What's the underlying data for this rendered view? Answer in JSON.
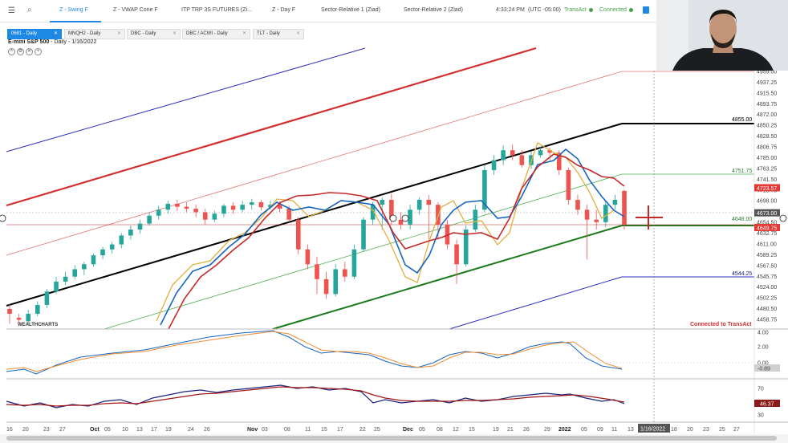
{
  "tabs": [
    {
      "label": "Z - Swing F",
      "active": true
    },
    {
      "label": "Z - VWAP Cone F",
      "active": false
    },
    {
      "label": "ITP TRP 3S FUTURES (Zi...",
      "active": false
    },
    {
      "label": "Z - Day F",
      "active": false
    },
    {
      "label": "Sector-Relative 1 (Ziad)",
      "active": false
    },
    {
      "label": "Sector-Relative 2 (Ziad)",
      "active": false
    }
  ],
  "status": {
    "time": "4:33:24 PM",
    "timezone": "(UTC -05:00)",
    "broker": "TransAct",
    "connection": "Connected"
  },
  "subtabs": [
    {
      "label": "0681 - Daily",
      "active": true
    },
    {
      "label": "MNQH2 - Daily",
      "active": false
    },
    {
      "label": "DBC - Daily",
      "active": false
    },
    {
      "label": "DBC / ACWI - Daily",
      "active": false
    },
    {
      "label": "TLT - Daily",
      "active": false
    }
  ],
  "chart": {
    "title": "E-mini S&P 500",
    "subtitle": " - Daily - 1/16/2022",
    "connected_notice": "Connected to TransAct",
    "watermark": "WEALTHCHARTS",
    "date_readout": "1/16/2022",
    "colors": {
      "up": "#26a69a",
      "down": "#ef5350",
      "accent": "#1e88e5"
    }
  },
  "chart_data": {
    "type": "candlestick",
    "price_axis": [
      "4959.00",
      "4937.25",
      "4915.50",
      "4893.75",
      "4872.00",
      "4850.25",
      "4828.50",
      "4806.75",
      "4785.00",
      "4763.25",
      "4741.50",
      "4719.75",
      "4698.00",
      "4676.25",
      "4654.50",
      "4632.75",
      "4611.00",
      "4589.25",
      "4567.50",
      "4545.75",
      "4524.00",
      "4502.25",
      "4480.50",
      "4458.75"
    ],
    "price_labels": [
      {
        "value": 4855.0,
        "text": "4855.00",
        "color": "#000000"
      },
      {
        "value": 4751.75,
        "text": "4751.75",
        "color": "#2e7d32"
      },
      {
        "value": 4723.57,
        "text": "4723.57",
        "color": "#e53935",
        "box": true
      },
      {
        "value": 4673.0,
        "text": "4673.00",
        "color": "#555555",
        "box": true
      },
      {
        "value": 4649.75,
        "text": "4649.75",
        "color": "#e53935",
        "box": true
      },
      {
        "value": 4648.0,
        "text": "4648.00",
        "color": "#2e7d32"
      },
      {
        "value": 4544.25,
        "text": "4544.25",
        "color": "#1a237e"
      }
    ],
    "ylim": [
      4450,
      4965
    ],
    "x_ticks": [
      "16",
      "20",
      "23",
      "27",
      "Oct",
      "05",
      "10",
      "13",
      "17",
      "19",
      "24",
      "26",
      "Nov",
      "03",
      "08",
      "11",
      "15",
      "17",
      "22",
      "25",
      "Dec",
      "05",
      "08",
      "12",
      "15",
      "19",
      "21",
      "26",
      "29",
      "2022",
      "05",
      "09",
      "11",
      "13",
      "18",
      "20",
      "23",
      "25",
      "27"
    ],
    "candles": [
      [
        4480,
        4470,
        4450,
        4490
      ],
      [
        4462,
        4458,
        4452,
        4470
      ],
      [
        4455,
        4470,
        4448,
        4478
      ],
      [
        4470,
        4488,
        4465,
        4495
      ],
      [
        4488,
        4515,
        4482,
        4520
      ],
      [
        4515,
        4535,
        4510,
        4545
      ],
      [
        4535,
        4545,
        4528,
        4555
      ],
      [
        4545,
        4560,
        4540,
        4568
      ],
      [
        4560,
        4570,
        4548,
        4575
      ],
      [
        4570,
        4588,
        4565,
        4592
      ],
      [
        4588,
        4600,
        4580,
        4605
      ],
      [
        4600,
        4610,
        4592,
        4615
      ],
      [
        4610,
        4628,
        4602,
        4633
      ],
      [
        4628,
        4640,
        4620,
        4648
      ],
      [
        4640,
        4652,
        4632,
        4660
      ],
      [
        4652,
        4668,
        4648,
        4675
      ],
      [
        4668,
        4680,
        4660,
        4688
      ],
      [
        4680,
        4692,
        4672,
        4698
      ],
      [
        4692,
        4686,
        4678,
        4700
      ],
      [
        4686,
        4682,
        4675,
        4695
      ],
      [
        4682,
        4675,
        4665,
        4690
      ],
      [
        4675,
        4660,
        4650,
        4682
      ],
      [
        4660,
        4672,
        4655,
        4678
      ],
      [
        4672,
        4688,
        4665,
        4692
      ],
      [
        4688,
        4680,
        4672,
        4695
      ],
      [
        4680,
        4690,
        4675,
        4698
      ],
      [
        4690,
        4695,
        4680,
        4702
      ],
      [
        4695,
        4685,
        4678,
        4700
      ],
      [
        4685,
        4690,
        4680,
        4698
      ],
      [
        4690,
        4682,
        4675,
        4697
      ],
      [
        4682,
        4660,
        4655,
        4688
      ],
      [
        4660,
        4600,
        4590,
        4665
      ],
      [
        4600,
        4570,
        4560,
        4610
      ],
      [
        4570,
        4540,
        4510,
        4585
      ],
      [
        4540,
        4510,
        4500,
        4555
      ],
      [
        4510,
        4560,
        4505,
        4570
      ],
      [
        4560,
        4545,
        4535,
        4575
      ],
      [
        4545,
        4600,
        4540,
        4610
      ],
      [
        4600,
        4660,
        4595,
        4665
      ],
      [
        4660,
        4690,
        4650,
        4695
      ],
      [
        4690,
        4700,
        4640,
        4705
      ],
      [
        4700,
        4660,
        4650,
        4712
      ],
      [
        4660,
        4650,
        4640,
        4675
      ],
      [
        4650,
        4680,
        4640,
        4690
      ],
      [
        4680,
        4700,
        4670,
        4705
      ],
      [
        4700,
        4690,
        4620,
        4710
      ],
      [
        4690,
        4650,
        4620,
        4695
      ],
      [
        4650,
        4610,
        4600,
        4660
      ],
      [
        4610,
        4570,
        4530,
        4620
      ],
      [
        4570,
        4640,
        4565,
        4648
      ],
      [
        4640,
        4680,
        4635,
        4690
      ],
      [
        4680,
        4760,
        4675,
        4770
      ],
      [
        4760,
        4780,
        4750,
        4790
      ],
      [
        4780,
        4800,
        4770,
        4810
      ],
      [
        4800,
        4790,
        4780,
        4812
      ],
      [
        4790,
        4770,
        4765,
        4800
      ],
      [
        4770,
        4790,
        4762,
        4798
      ],
      [
        4790,
        4800,
        4785,
        4808
      ],
      [
        4800,
        4795,
        4780,
        4805
      ],
      [
        4795,
        4760,
        4750,
        4800
      ],
      [
        4760,
        4700,
        4690,
        4765
      ],
      [
        4700,
        4680,
        4670,
        4710
      ],
      [
        4680,
        4660,
        4580,
        4690
      ],
      [
        4660,
        4655,
        4640,
        4680
      ],
      [
        4655,
        4690,
        4645,
        4698
      ],
      [
        4690,
        4700,
        4680,
        4710
      ],
      [
        4718,
        4650,
        4640,
        4720
      ]
    ],
    "oscillator1_axis": [
      "4.00",
      "2.00",
      "0.00",
      "-0.89"
    ],
    "oscillator2_axis": [
      "70",
      "46.37",
      "30"
    ]
  }
}
